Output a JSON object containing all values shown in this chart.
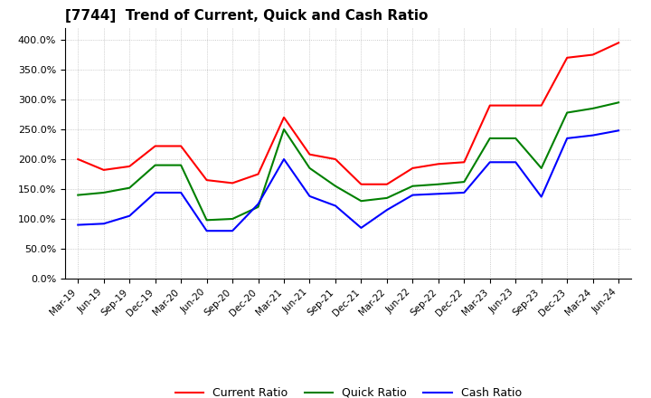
{
  "title": "[7744]  Trend of Current, Quick and Cash Ratio",
  "x_labels": [
    "Mar-19",
    "Jun-19",
    "Sep-19",
    "Dec-19",
    "Mar-20",
    "Jun-20",
    "Sep-20",
    "Dec-20",
    "Mar-21",
    "Jun-21",
    "Sep-21",
    "Dec-21",
    "Mar-22",
    "Jun-22",
    "Sep-22",
    "Dec-22",
    "Mar-23",
    "Jun-23",
    "Sep-23",
    "Dec-23",
    "Mar-24",
    "Jun-24"
  ],
  "current_ratio": [
    200,
    182,
    188,
    222,
    222,
    165,
    160,
    175,
    270,
    208,
    200,
    158,
    158,
    185,
    192,
    195,
    290,
    290,
    290,
    370,
    375,
    395
  ],
  "quick_ratio": [
    140,
    144,
    152,
    190,
    190,
    98,
    100,
    120,
    250,
    185,
    155,
    130,
    135,
    155,
    158,
    162,
    235,
    235,
    185,
    278,
    285,
    295
  ],
  "cash_ratio": [
    90,
    92,
    105,
    144,
    144,
    80,
    80,
    125,
    200,
    138,
    122,
    85,
    115,
    140,
    142,
    144,
    195,
    195,
    137,
    235,
    240,
    248
  ],
  "current_color": "#FF0000",
  "quick_color": "#008000",
  "cash_color": "#0000FF",
  "bg_color": "#FFFFFF",
  "plot_bg_color": "#FFFFFF",
  "grid_color": "#AAAAAA",
  "legend_labels": [
    "Current Ratio",
    "Quick Ratio",
    "Cash Ratio"
  ],
  "ytick_vals": [
    0,
    50,
    100,
    150,
    200,
    250,
    300,
    350,
    400
  ],
  "ytick_labels": [
    "0.0%",
    "50.0%",
    "100.0%",
    "150.0%",
    "200.0%",
    "250.0%",
    "300.0%",
    "350.0%",
    "400.0%"
  ],
  "ylim": [
    0,
    420
  ],
  "linewidth": 1.5
}
